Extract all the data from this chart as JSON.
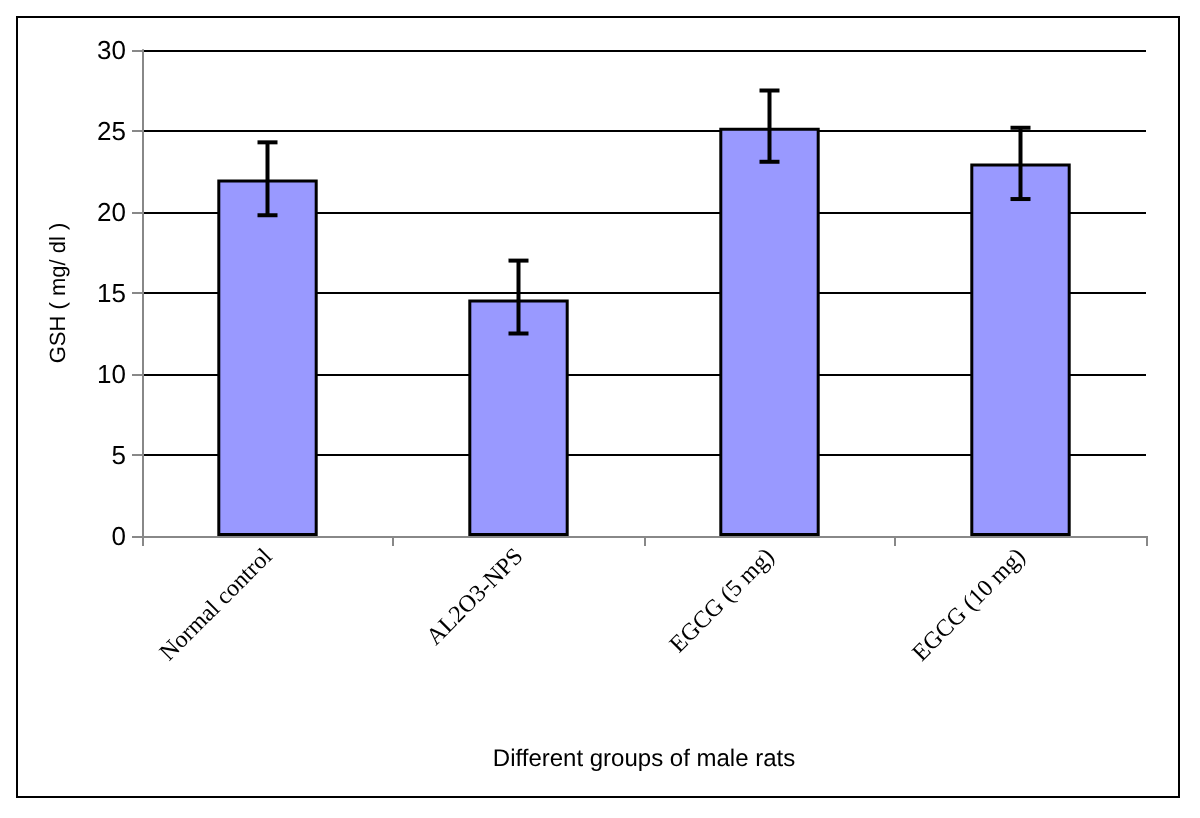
{
  "chart_data": {
    "type": "bar",
    "xlabel": "Different groups of male rats",
    "ylabel": "GSH ( mg/ dl )",
    "categories": [
      "Normal control",
      "AL2O3-NPS",
      "EGCG (5 mg)",
      "EGCG (10 mg)"
    ],
    "values": [
      22.0,
      14.6,
      25.2,
      23.0
    ],
    "errors": [
      [
        19.8,
        24.3
      ],
      [
        12.5,
        17.0
      ],
      [
        23.1,
        27.5
      ],
      [
        20.8,
        25.2
      ]
    ],
    "color": "#9999ff",
    "ylim": [
      0,
      30
    ],
    "yticks": [
      0,
      5,
      10,
      15,
      20,
      25,
      30
    ],
    "grid": "y"
  }
}
